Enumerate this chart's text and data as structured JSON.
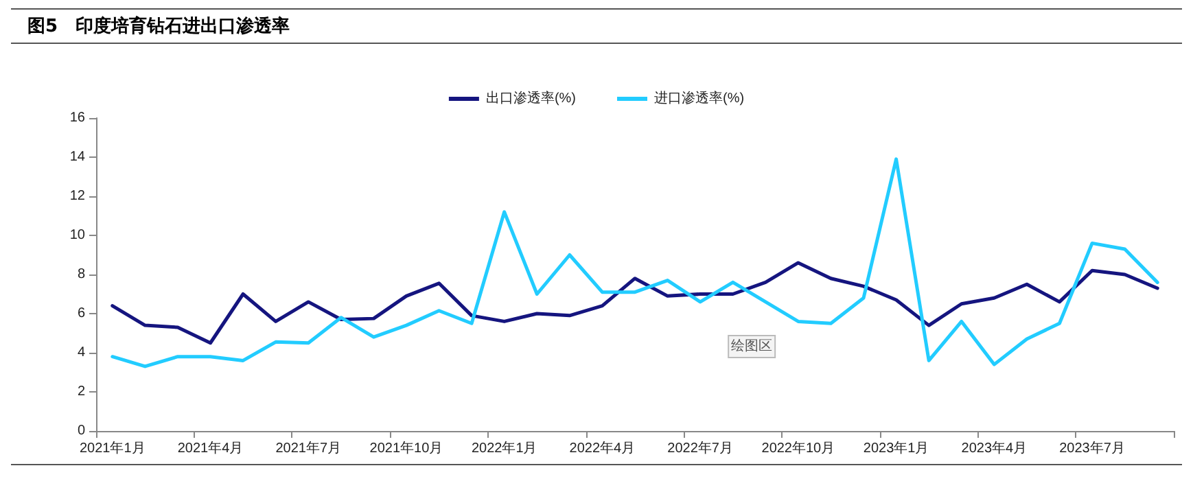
{
  "chart_data": {
    "type": "line",
    "title": "图5　印度培育钻石进出口渗透率",
    "categories": [
      "2021年1月",
      null,
      null,
      "2021年4月",
      null,
      null,
      "2021年7月",
      null,
      null,
      "2021年10月",
      null,
      null,
      "2022年1月",
      null,
      null,
      "2022年4月",
      null,
      null,
      "2022年7月",
      null,
      null,
      "2022年10月",
      null,
      null,
      "2023年1月",
      null,
      null,
      "2023年4月",
      null,
      null,
      "2023年7月",
      null,
      null
    ],
    "series": [
      {
        "name": "出口渗透率(%)",
        "color": "#15157f",
        "values": [
          6.4,
          5.4,
          5.3,
          4.5,
          7.0,
          5.6,
          6.6,
          5.7,
          5.75,
          6.9,
          7.55,
          5.9,
          5.6,
          6.0,
          5.9,
          6.4,
          7.8,
          6.9,
          7.0,
          7.0,
          7.6,
          8.6,
          7.8,
          7.4,
          6.7,
          5.4,
          6.5,
          6.8,
          7.5,
          6.6,
          8.2,
          8.0,
          7.3
        ]
      },
      {
        "name": "进口渗透率(%)",
        "color": "#22ccff",
        "values": [
          3.8,
          3.3,
          3.8,
          3.8,
          3.6,
          4.55,
          4.5,
          5.8,
          4.8,
          5.4,
          6.15,
          5.5,
          11.2,
          7.0,
          9.0,
          7.1,
          7.1,
          7.7,
          6.6,
          7.6,
          6.6,
          5.6,
          5.5,
          6.8,
          13.9,
          3.6,
          5.6,
          3.4,
          4.7,
          5.5,
          9.6,
          9.3,
          7.6
        ]
      }
    ],
    "ylim": [
      0,
      16
    ],
    "yticks": [
      0,
      2,
      4,
      6,
      8,
      10,
      12,
      14,
      16
    ],
    "grid": false,
    "legend": "top",
    "marker": "none",
    "line_style": "solid",
    "annotations": [
      "绘图区"
    ]
  }
}
